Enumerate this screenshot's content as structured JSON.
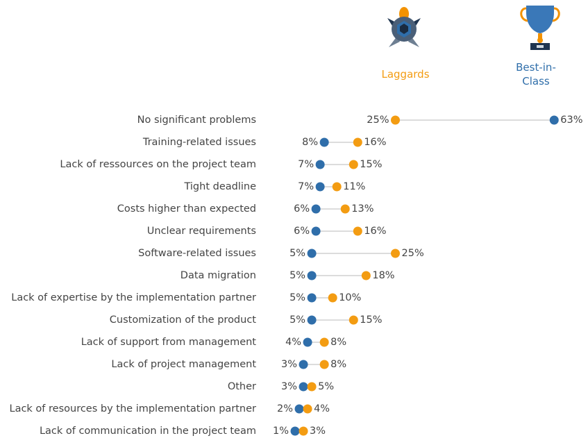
{
  "chart_data": {
    "type": "dumbbell",
    "categories": [
      "No significant problems",
      "Training-related issues",
      "Lack of ressources on the project team",
      "Tight deadline",
      "Costs higher than expected",
      "Unclear requirements",
      "Software-related issues",
      "Data migration",
      "Lack of expertise by the implementation partner",
      "Customization of the product",
      "Lack of support from management",
      "Lack of project management",
      "Other",
      "Lack of resources by the implementation partner",
      "Lack of communication in the project team"
    ],
    "series": [
      {
        "name": "Laggards",
        "color": "#f39c12",
        "values": [
          25,
          16,
          15,
          11,
          13,
          16,
          25,
          18,
          10,
          15,
          8,
          8,
          5,
          4,
          3
        ],
        "value_labels": [
          "25%",
          "16%",
          "15%",
          "11%",
          "13%",
          "16%",
          "25%",
          "18%",
          "10%",
          "15%",
          "8%",
          "8%",
          "5%",
          "4%",
          "3%"
        ]
      },
      {
        "name": "Best-in-Class",
        "color": "#2f6eaa",
        "values": [
          63,
          8,
          7,
          7,
          6,
          6,
          5,
          5,
          5,
          5,
          4,
          3,
          3,
          2,
          1
        ],
        "value_labels": [
          "63%",
          "8%",
          "7%",
          "7%",
          "6%",
          "6%",
          "5%",
          "5%",
          "5%",
          "5%",
          "4%",
          "3%",
          "3%",
          "2%",
          "1%"
        ]
      }
    ]
  }
}
